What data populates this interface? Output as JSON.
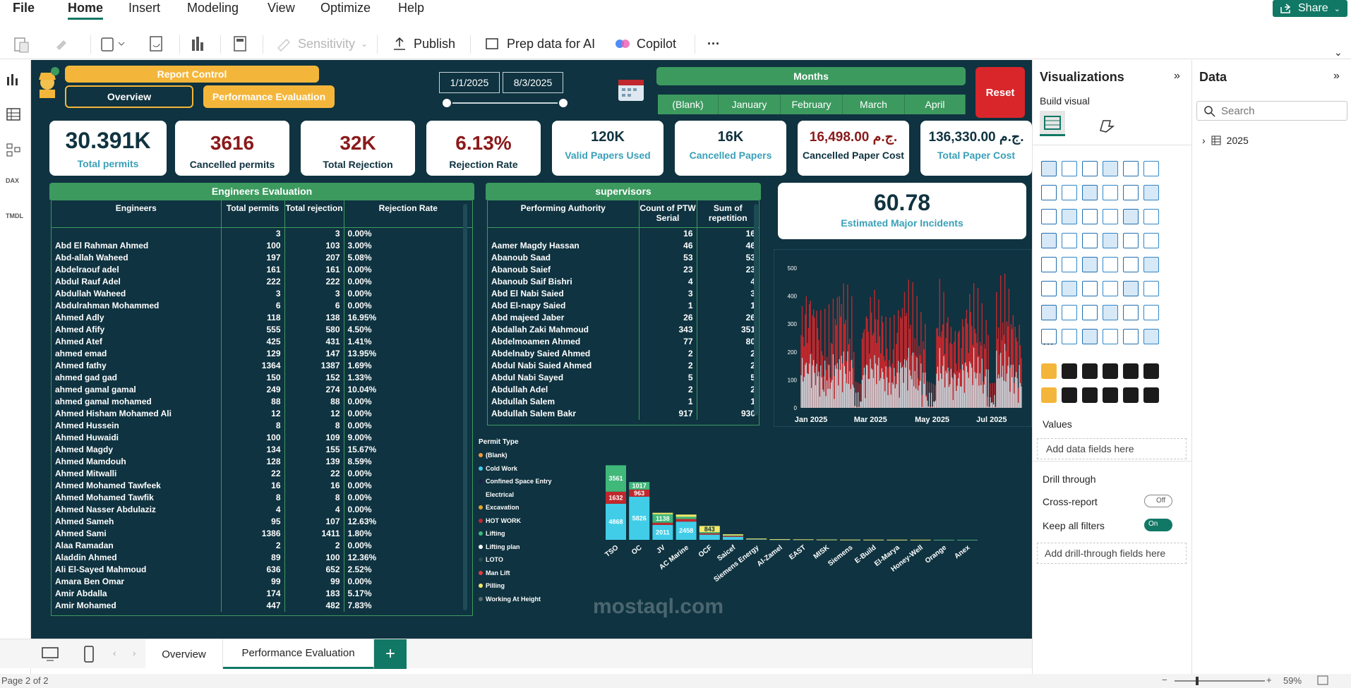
{
  "menu": [
    "File",
    "Home",
    "Insert",
    "Modeling",
    "View",
    "Optimize",
    "Help"
  ],
  "share_label": "Share",
  "toolbar": {
    "sensitivity": "Sensitivity",
    "publish": "Publish",
    "prep": "Prep data for AI",
    "copilot": "Copilot",
    "more": "···"
  },
  "header": {
    "report_control": "Report Control",
    "overview": "Overview",
    "performance": "Performance Evaluation",
    "date_start": "1/1/2025",
    "date_end": "8/3/2025",
    "months_title": "Months",
    "months": [
      "(Blank)",
      "January",
      "February",
      "March",
      "April"
    ],
    "reset": "Reset"
  },
  "kpis": [
    {
      "value": "30.391K",
      "label": "Total permits"
    },
    {
      "value": "3616",
      "label": "Cancelled permits"
    },
    {
      "value": "32K",
      "label": "Total Rejection"
    },
    {
      "value": "6.13%",
      "label": "Rejection Rate"
    },
    {
      "value": "120K",
      "label": "Valid Papers Used"
    },
    {
      "value": "16K",
      "label": "Cancelled Papers"
    },
    {
      "value": "16,498.00 ج.م.",
      "label": "Cancelled Paper Cost"
    },
    {
      "value": "136,330.00 ج.م.",
      "label": "Total Paper Cost"
    }
  ],
  "incidents": {
    "value": "60.78",
    "label": "Estimated Major Incidents"
  },
  "engineers": {
    "title": "Engineers Evaluation",
    "columns": [
      "Engineers",
      "Total permits",
      "Total rejection",
      "Rejection Rate"
    ],
    "rows": [
      [
        "",
        "3",
        "3",
        "0.00%"
      ],
      [
        "Abd El Rahman Ahmed",
        "100",
        "103",
        "3.00%"
      ],
      [
        "Abd-allah Waheed",
        "197",
        "207",
        "5.08%"
      ],
      [
        "Abdelraouf adel",
        "161",
        "161",
        "0.00%"
      ],
      [
        "Abdul Rauf Adel",
        "222",
        "222",
        "0.00%"
      ],
      [
        "Abdullah Waheed",
        "3",
        "3",
        "0.00%"
      ],
      [
        "Abdulrahman Mohammed",
        "6",
        "6",
        "0.00%"
      ],
      [
        "Ahmed Adly",
        "118",
        "138",
        "16.95%"
      ],
      [
        "Ahmed Afify",
        "555",
        "580",
        "4.50%"
      ],
      [
        "Ahmed Atef",
        "425",
        "431",
        "1.41%"
      ],
      [
        "ahmed emad",
        "129",
        "147",
        "13.95%"
      ],
      [
        "Ahmed fathy",
        "1364",
        "1387",
        "1.69%"
      ],
      [
        "ahmed gad gad",
        "150",
        "152",
        "1.33%"
      ],
      [
        "ahmed gamal gamal",
        "249",
        "274",
        "10.04%"
      ],
      [
        "ahmed gamal mohamed",
        "88",
        "88",
        "0.00%"
      ],
      [
        "Ahmed Hisham Mohamed Ali",
        "12",
        "12",
        "0.00%"
      ],
      [
        "Ahmed Hussein",
        "8",
        "8",
        "0.00%"
      ],
      [
        "Ahmed Huwaidi",
        "100",
        "109",
        "9.00%"
      ],
      [
        "Ahmed Magdy",
        "134",
        "155",
        "15.67%"
      ],
      [
        "Ahmed Mamdouh",
        "128",
        "139",
        "8.59%"
      ],
      [
        "Ahmed Mitwalli",
        "22",
        "22",
        "0.00%"
      ],
      [
        "Ahmed Mohamed Tawfeek",
        "16",
        "16",
        "0.00%"
      ],
      [
        "Ahmed Mohamed Tawfik",
        "8",
        "8",
        "0.00%"
      ],
      [
        "Ahmed Nasser Abdulaziz",
        "4",
        "4",
        "0.00%"
      ],
      [
        "Ahmed Sameh",
        "95",
        "107",
        "12.63%"
      ],
      [
        "Ahmed Sami",
        "1386",
        "1411",
        "1.80%"
      ],
      [
        "Alaa Ramadan",
        "2",
        "2",
        "0.00%"
      ],
      [
        "Aladdin Ahmed",
        "89",
        "100",
        "12.36%"
      ],
      [
        "Ali El-Sayed Mahmoud",
        "636",
        "652",
        "2.52%"
      ],
      [
        "Amara Ben Omar",
        "99",
        "99",
        "0.00%"
      ],
      [
        "Amir Abdalla",
        "174",
        "183",
        "5.17%"
      ],
      [
        "Amir Mohamed",
        "447",
        "482",
        "7.83%"
      ]
    ]
  },
  "supervisors": {
    "title": "supervisors",
    "columns": [
      "Performing Authority",
      "Count of PTW Serial",
      "Sum of repetition"
    ],
    "rows": [
      [
        "",
        "16",
        "16"
      ],
      [
        "Aamer Magdy Hassan",
        "46",
        "46"
      ],
      [
        "Abanoub Saad",
        "53",
        "53"
      ],
      [
        "Abanoub Saief",
        "23",
        "23"
      ],
      [
        "Abanoub Saif Bishri",
        "4",
        "4"
      ],
      [
        "Abd El Nabi Saied",
        "3",
        "3"
      ],
      [
        "Abd El-napy Saied",
        "1",
        "1"
      ],
      [
        "Abd majeed Jaber",
        "26",
        "26"
      ],
      [
        "Abdallah Zaki Mahmoud",
        "343",
        "351"
      ],
      [
        "Abdelmoamen Ahmed",
        "77",
        "80"
      ],
      [
        "Abdelnaby Saied Ahmed",
        "2",
        "2"
      ],
      [
        "Abdul Nabi Saied Ahmed",
        "2",
        "2"
      ],
      [
        "Abdul Nabi Sayed",
        "5",
        "5"
      ],
      [
        "Abdullah Adel",
        "2",
        "2"
      ],
      [
        "Abdullah Salem",
        "1",
        "1"
      ],
      [
        "Abdullah Salem Bakr",
        "917",
        "930"
      ]
    ]
  },
  "chart_data": [
    {
      "type": "area",
      "series": [
        {
          "values": []
        },
        {
          "values": []
        }
      ],
      "x_tick_labels": [
        "Jan 2025",
        "Mar 2025",
        "May 2025",
        "Jul 2025"
      ],
      "y_ticks": [
        0,
        100,
        200,
        300,
        400,
        500
      ],
      "ylim": [
        0,
        500
      ],
      "colors": [
        "#c0282d",
        "#c8d6dc"
      ]
    },
    {
      "type": "bar",
      "stacked": true,
      "legend_title": "Permit Type",
      "legend": [
        {
          "name": "(Blank)",
          "color": "#f39a3b"
        },
        {
          "name": "Cold Work",
          "color": "#41cde8"
        },
        {
          "name": "Confined Space Entry",
          "color": "#1f1f4d"
        },
        {
          "name": "Electrical",
          "color": "#0f3340"
        },
        {
          "name": "Excavation",
          "color": "#e0a528"
        },
        {
          "name": "HOT WORK",
          "color": "#c0282d"
        },
        {
          "name": "Lifting",
          "color": "#3fb87a"
        },
        {
          "name": "Lifting plan",
          "color": "#ffffff"
        },
        {
          "name": "LOTO",
          "color": "#2a4a55"
        },
        {
          "name": "Man Lift",
          "color": "#e33c3c"
        },
        {
          "name": "Pilling",
          "color": "#f1ea6a"
        },
        {
          "name": "Working At Height",
          "color": "#5a6a72"
        }
      ],
      "categories": [
        "TSO",
        "OC",
        "JV",
        "AC Marine",
        "OCF",
        "Saicef",
        "Siemens Energy",
        "Al-Zamel",
        "EAST",
        "MISK",
        "Siemens",
        "E-Build",
        "El-Marya",
        "Honey-Well",
        "Orange",
        "Anex"
      ],
      "series": [
        {
          "name": "Cold Work",
          "color": "#41cde8",
          "values": [
            4868,
            5826,
            2011,
            2458,
            700,
            400,
            80,
            40,
            30,
            20,
            10,
            8,
            6,
            4,
            3,
            2
          ]
        },
        {
          "name": "HOT WORK",
          "color": "#c0282d",
          "values": [
            1632,
            963,
            300,
            350,
            180,
            120,
            40,
            20,
            15,
            10,
            5,
            4,
            3,
            2,
            1,
            1
          ]
        },
        {
          "name": "Lifting",
          "color": "#3fb87a",
          "values": [
            3561,
            1017,
            1138,
            300,
            150,
            80,
            30,
            15,
            10,
            5,
            4,
            3,
            2,
            1,
            1,
            1
          ]
        },
        {
          "name": "Pilling",
          "color": "#f1ea6a",
          "values": [
            0,
            0,
            200,
            300,
            843,
            150,
            20,
            10,
            5,
            3,
            2,
            1,
            1,
            1,
            0,
            0
          ]
        }
      ],
      "data_labels": {
        "TSO": [
          "4868",
          "1632",
          "3561"
        ],
        "OC": [
          "5826",
          "963",
          "1017"
        ],
        "JV": [
          "2011",
          "1138"
        ],
        "AC Marine": [
          "2458"
        ],
        "OCF": [
          "843"
        ]
      }
    }
  ],
  "viz_pane": {
    "title": "Visualizations",
    "build": "Build visual",
    "values": "Values",
    "add_fields": "Add data fields here",
    "drill": "Drill through",
    "cross": "Cross-report",
    "cross_state": "Off",
    "keep": "Keep all filters",
    "keep_state": "On",
    "add_drill": "Add drill-through fields here"
  },
  "data_pane": {
    "title": "Data",
    "search_placeholder": "Search",
    "table": "2025"
  },
  "pages": [
    "Overview",
    "Performance Evaluation"
  ],
  "status": {
    "page": "Page 2 of 2",
    "zoom": "59%"
  },
  "watermark": "mostaql.com"
}
